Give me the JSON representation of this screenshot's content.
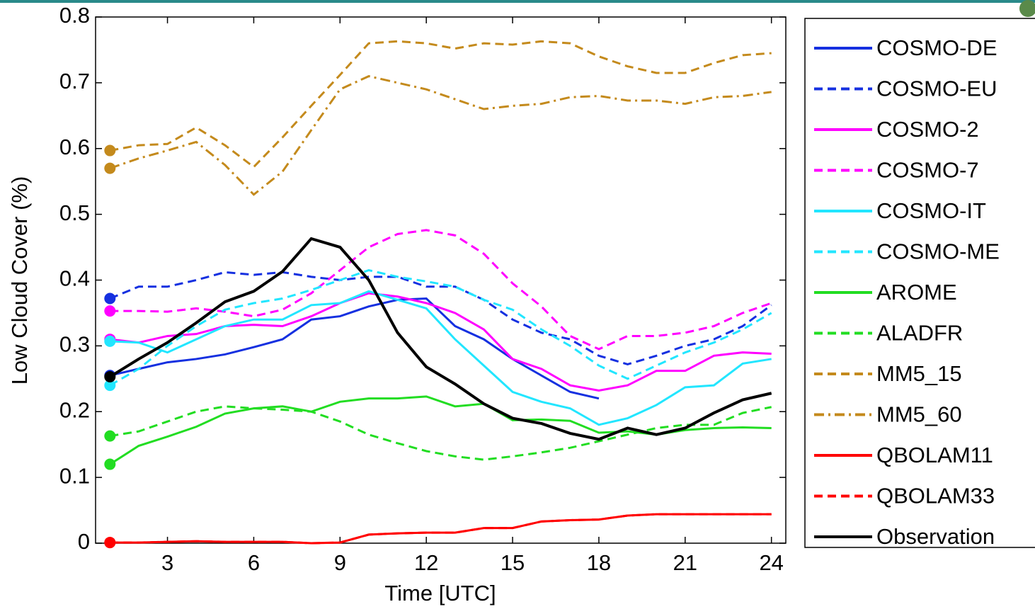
{
  "chart_data": {
    "type": "line",
    "xlabel": "Time [UTC]",
    "ylabel": "Low Cloud Cover (%)",
    "x": [
      1,
      2,
      3,
      4,
      5,
      6,
      7,
      8,
      9,
      10,
      11,
      12,
      13,
      14,
      15,
      16,
      17,
      18,
      19,
      20,
      21,
      22,
      23,
      24
    ],
    "xlim": [
      0.5,
      24.5
    ],
    "xticks": [
      3,
      6,
      9,
      12,
      15,
      18,
      21,
      24
    ],
    "ylim": [
      0,
      0.8
    ],
    "yticks": [
      0,
      0.1,
      0.2,
      0.3,
      0.4,
      0.5,
      0.6,
      0.7,
      0.8
    ],
    "grid": false,
    "legend": "outside right",
    "series": [
      {
        "name": "COSMO-DE",
        "color": "#1530e0",
        "dash": "solid",
        "values": [
          0.255,
          0.265,
          0.275,
          0.28,
          0.287,
          0.298,
          0.31,
          0.34,
          0.345,
          0.36,
          0.37,
          0.372,
          0.33,
          0.31,
          0.28,
          0.255,
          0.23,
          0.22,
          null,
          null,
          null,
          null,
          null,
          null
        ]
      },
      {
        "name": "COSMO-EU",
        "color": "#1530e0",
        "dash": "dashed",
        "values": [
          0.372,
          0.39,
          0.39,
          0.4,
          0.412,
          0.408,
          0.412,
          0.405,
          0.4,
          0.405,
          0.405,
          0.39,
          0.39,
          0.37,
          0.34,
          0.32,
          0.31,
          0.285,
          0.272,
          0.285,
          0.3,
          0.31,
          0.33,
          0.362
        ]
      },
      {
        "name": "COSMO-2",
        "color": "#ff00ff",
        "dash": "solid",
        "values": [
          0.31,
          0.305,
          0.315,
          0.318,
          0.33,
          0.332,
          0.33,
          0.345,
          0.365,
          0.38,
          0.375,
          0.365,
          0.35,
          0.325,
          0.28,
          0.265,
          0.24,
          0.232,
          0.24,
          0.262,
          0.262,
          0.285,
          0.29,
          0.288
        ]
      },
      {
        "name": "COSMO-7",
        "color": "#ff00ff",
        "dash": "dashed",
        "values": [
          0.353,
          0.353,
          0.352,
          0.357,
          0.352,
          0.345,
          0.355,
          0.38,
          0.415,
          0.45,
          0.47,
          0.476,
          0.468,
          0.44,
          0.395,
          0.36,
          0.315,
          0.295,
          0.315,
          0.315,
          0.32,
          0.33,
          0.35,
          0.365
        ]
      },
      {
        "name": "COSMO-IT",
        "color": "#22e6ff",
        "dash": "solid",
        "values": [
          0.307,
          0.305,
          0.29,
          0.31,
          0.33,
          0.34,
          0.34,
          0.362,
          0.365,
          0.383,
          0.37,
          0.357,
          0.31,
          0.27,
          0.23,
          0.215,
          0.205,
          0.18,
          0.19,
          0.21,
          0.237,
          0.24,
          0.273,
          0.28
        ]
      },
      {
        "name": "COSMO-ME",
        "color": "#22e6ff",
        "dash": "dashed",
        "values": [
          0.24,
          0.265,
          0.3,
          0.33,
          0.355,
          0.365,
          0.372,
          0.385,
          0.4,
          0.415,
          0.405,
          0.398,
          0.39,
          0.37,
          0.355,
          0.325,
          0.3,
          0.27,
          0.25,
          0.27,
          0.29,
          0.305,
          0.325,
          0.35
        ]
      },
      {
        "name": "AROME",
        "color": "#22dd22",
        "dash": "solid",
        "values": [
          0.12,
          0.148,
          0.162,
          0.177,
          0.197,
          0.205,
          0.208,
          0.2,
          0.215,
          0.22,
          0.22,
          0.223,
          0.208,
          0.212,
          0.187,
          0.188,
          0.186,
          0.168,
          0.17,
          0.165,
          0.172,
          0.175,
          0.176,
          0.175
        ]
      },
      {
        "name": "ALADFR",
        "color": "#22dd22",
        "dash": "dashed",
        "values": [
          0.163,
          0.17,
          0.185,
          0.2,
          0.208,
          0.205,
          0.203,
          0.2,
          0.185,
          0.165,
          0.152,
          0.14,
          0.132,
          0.127,
          0.132,
          0.138,
          0.145,
          0.155,
          0.165,
          0.175,
          0.18,
          0.18,
          0.198,
          0.207
        ]
      },
      {
        "name": "MM5_15",
        "color": "#c48a1c",
        "dash": "dashed",
        "values": [
          0.597,
          0.605,
          0.607,
          0.632,
          0.605,
          0.572,
          0.617,
          0.665,
          0.712,
          0.76,
          0.763,
          0.76,
          0.752,
          0.76,
          0.758,
          0.763,
          0.76,
          0.74,
          0.725,
          0.715,
          0.715,
          0.73,
          0.742,
          0.745
        ]
      },
      {
        "name": "MM5_60",
        "color": "#c48a1c",
        "dash": "dashdot",
        "values": [
          0.57,
          0.585,
          0.597,
          0.61,
          0.575,
          0.53,
          0.565,
          0.628,
          0.69,
          0.71,
          0.7,
          0.69,
          0.675,
          0.66,
          0.665,
          0.668,
          0.678,
          0.68,
          0.673,
          0.673,
          0.668,
          0.678,
          0.68,
          0.686
        ]
      },
      {
        "name": "QBOLAM11",
        "color": "#ff0000",
        "dash": "solid",
        "values": [
          0.001,
          0.001,
          0.002,
          0.003,
          0.002,
          0.002,
          0.002,
          0,
          0.001,
          0.013,
          0.015,
          0.016,
          0.016,
          0.023,
          0.023,
          0.033,
          0.035,
          0.036,
          0.042,
          0.044,
          0.044,
          0.044,
          0.044,
          0.044
        ]
      },
      {
        "name": "QBOLAM33",
        "color": "#ff0000",
        "dash": "dashed",
        "values": [
          0.001,
          0.001,
          0.002,
          0.003,
          0.002,
          0.002,
          0.002,
          0,
          0.001,
          0.013,
          0.015,
          0.016,
          0.016,
          0.023,
          0.023,
          0.033,
          0.035,
          0.036,
          0.042,
          0.044,
          0.044,
          0.044,
          0.044,
          0.044
        ]
      },
      {
        "name": "Observation",
        "color": "#000000",
        "dash": "solid",
        "values": [
          0.253,
          0.28,
          0.305,
          0.335,
          0.367,
          0.383,
          0.413,
          0.463,
          0.45,
          0.4,
          0.32,
          0.268,
          0.242,
          0.212,
          0.19,
          0.182,
          0.167,
          0.158,
          0.175,
          0.165,
          0.175,
          0.198,
          0.218,
          0.228
        ]
      }
    ]
  }
}
